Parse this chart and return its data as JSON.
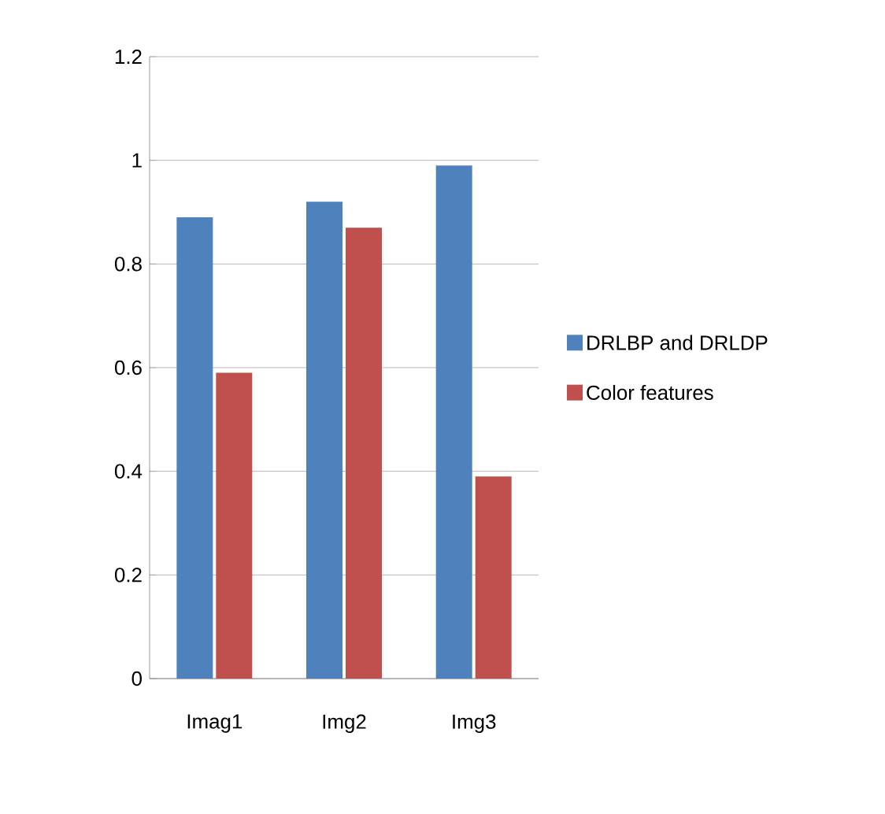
{
  "chart_data": {
    "type": "bar",
    "categories": [
      "Imag1",
      "Img2",
      "Img3"
    ],
    "series": [
      {
        "name": "DRLBP and DRLDP",
        "color": "#4f81bd",
        "values": [
          0.89,
          0.92,
          0.99
        ]
      },
      {
        "name": "Color features",
        "color": "#c0504d",
        "values": [
          0.59,
          0.87,
          0.39
        ]
      }
    ],
    "ylim": [
      0,
      1.2
    ],
    "yticks": [
      0,
      0.2,
      0.4,
      0.6,
      0.8,
      1,
      1.2
    ],
    "grid": "y",
    "legend": "right"
  }
}
